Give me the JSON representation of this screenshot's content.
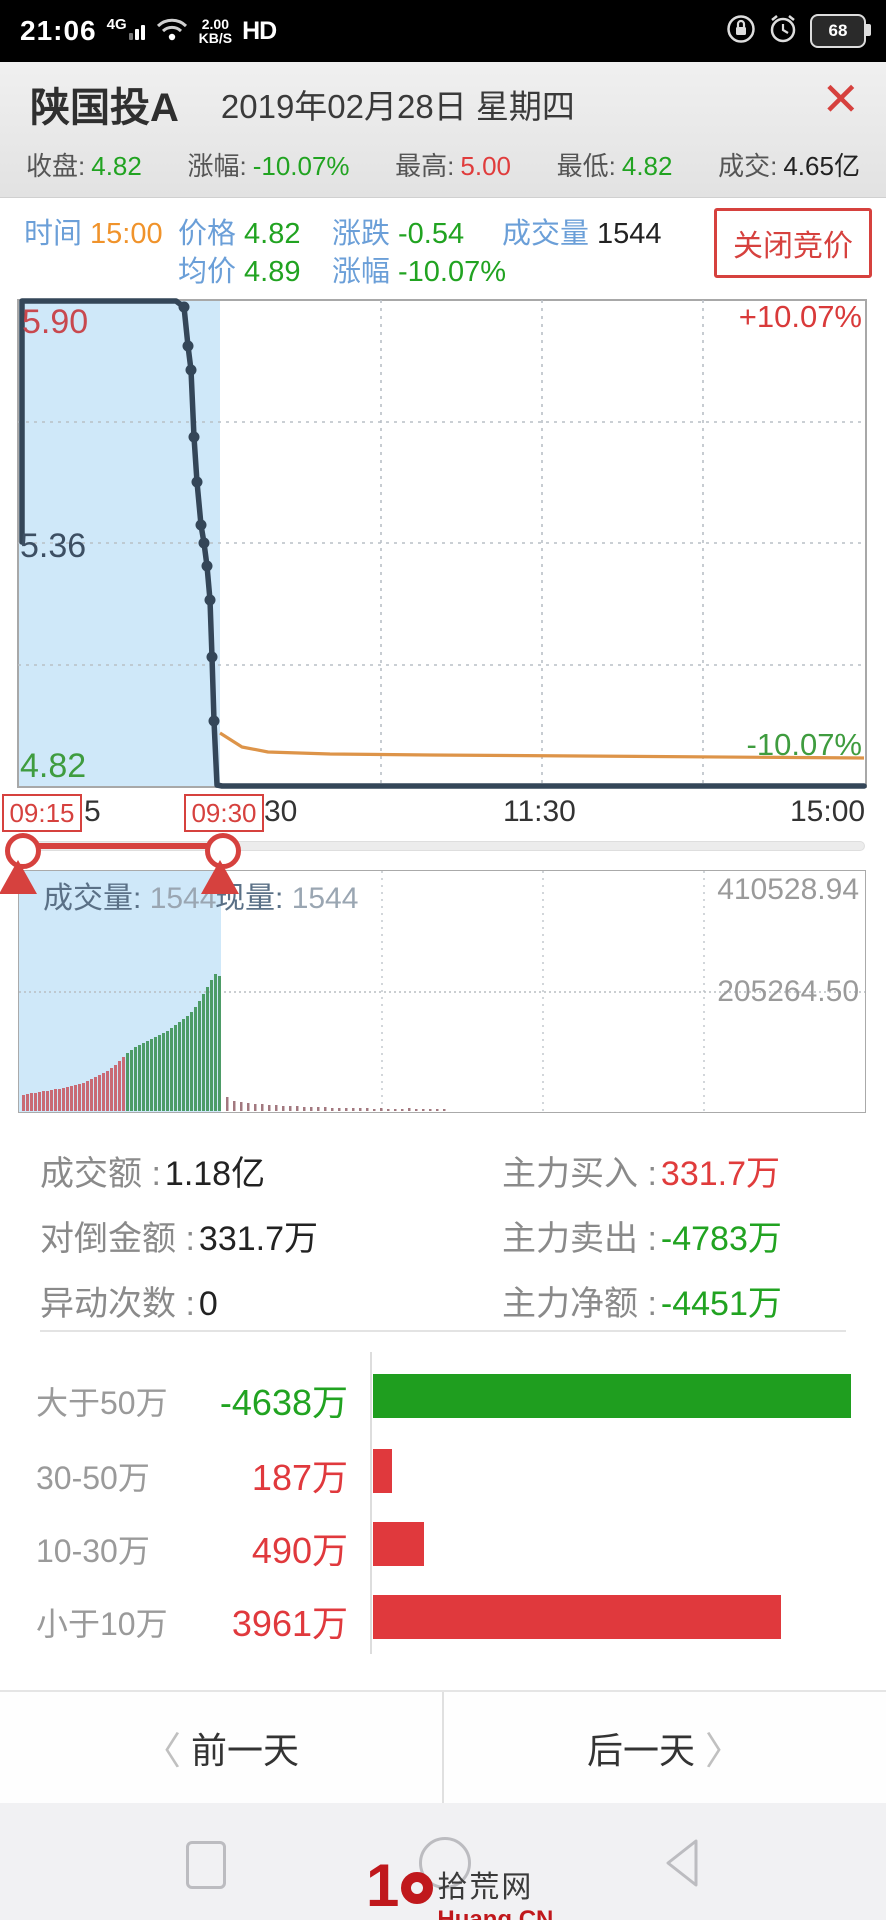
{
  "status_bar": {
    "time": "21:06",
    "network": "4G",
    "speed_top": "2.00",
    "speed_bottom": "KB/S",
    "hd": "HD",
    "battery_percent": "68"
  },
  "header": {
    "stock_name": "陕国投A",
    "date": "2019年02月28日 星期四",
    "close_icon": "✕",
    "stats": [
      {
        "label": "收盘:",
        "value": "4.82"
      },
      {
        "label": "涨幅:",
        "value": "-10.07%"
      },
      {
        "label": "最高:",
        "value": "5.00"
      },
      {
        "label": "最低:",
        "value": "4.82"
      },
      {
        "label": "成交:",
        "value": "4.65亿"
      }
    ]
  },
  "quote_panel": {
    "time_label": "时间",
    "time_value": "15:00",
    "price_label": "价格",
    "price_value": "4.82",
    "change_label": "涨跌",
    "change_value": "-0.54",
    "volume_label": "成交量",
    "volume_value": "1544",
    "avg_label": "均价",
    "avg_value": "4.89",
    "pct_label": "涨幅",
    "pct_value": "-10.07%",
    "auction_button": "关闭竞价"
  },
  "timeshare_chart": {
    "type": "line",
    "high_label": "5.90",
    "mid_label": "5.36",
    "low_label": "4.82",
    "pct_up_label": "+10.07%",
    "pct_down_label": "-10.07%",
    "x_axis": {
      "tick_after_start": "5",
      "tick_after_range_end": "30",
      "mid": "11:30",
      "end": "15:00"
    },
    "price_range": [
      4.82,
      5.9
    ],
    "prev_close": 5.36,
    "description": "开盘竞价从涨停5.90直线砸至跌停4.82，全天封死跌停",
    "price_points": "22,259 22,18 176,18 184,24 188,63 191,87 194,154 197,199 201,242 204,260 207,283 210,317 212,374 214,438 217,502 222,503 864,503",
    "price_dots": [
      [
        184,
        24
      ],
      [
        188,
        63
      ],
      [
        191,
        87
      ],
      [
        194,
        154
      ],
      [
        197,
        199
      ],
      [
        201,
        242
      ],
      [
        204,
        260
      ],
      [
        207,
        283
      ],
      [
        210,
        317
      ],
      [
        212,
        374
      ],
      [
        214,
        438
      ]
    ],
    "avg_points": "220,450 242,464 268,469 330,471 430,472 580,473 864,475"
  },
  "range_slider": {
    "start_label": "09:15",
    "end_label": "09:30"
  },
  "volume_panel": {
    "left_label": "成交量:",
    "left_value": "1544",
    "mid_label": "现量:",
    "mid_value": "1544",
    "right_top_value": "410528.94",
    "right_mid_value": "205264.50",
    "auction_bar_heights": [
      16,
      17,
      18,
      18,
      19,
      20,
      20,
      21,
      22,
      22,
      23,
      24,
      25,
      26,
      27,
      28,
      30,
      32,
      34,
      36,
      38,
      40,
      43,
      46,
      50,
      54,
      58,
      61,
      64,
      66,
      68,
      70,
      72,
      74,
      76,
      78,
      80,
      83,
      86,
      89,
      92,
      95,
      99,
      104,
      110,
      117,
      124,
      131,
      137,
      135
    ],
    "auction_red_count": 26,
    "post_bar_heights": [
      14,
      10,
      9,
      8,
      7,
      7,
      6,
      6,
      5,
      5,
      5,
      4,
      4,
      4,
      4,
      3,
      3,
      3,
      3,
      3,
      3,
      2,
      3,
      2,
      2,
      2,
      3,
      2,
      2,
      2,
      2,
      2
    ]
  },
  "summary": {
    "items": [
      {
        "label": "成交额 :",
        "value": "1.18亿",
        "cls": "c-dark"
      },
      {
        "label": "主力买入 :",
        "value": "331.7万",
        "cls": "c-red"
      },
      {
        "label": "对倒金额 :",
        "value": "331.7万",
        "cls": "c-dark"
      },
      {
        "label": "主力卖出 :",
        "value": "-4783万",
        "cls": "c-green"
      },
      {
        "label": "异动次数 :",
        "value": "0",
        "cls": "c-dark"
      },
      {
        "label": "主力净额 :",
        "value": "-4451万",
        "cls": "c-green"
      }
    ]
  },
  "flow_chart": {
    "type": "bar",
    "categories": [
      "大于50万",
      "30-50万",
      "10-30万",
      "小于10万"
    ],
    "values": [
      -4638,
      187,
      490,
      3961
    ],
    "value_labels": [
      "-4638万",
      "187万",
      "490万",
      "3961万"
    ],
    "colors": [
      "green",
      "red",
      "red",
      "red"
    ],
    "max_abs_value": 4638,
    "rows": [
      {
        "label": "大于50万",
        "value_label": "-4638万",
        "value": 4638,
        "color": "green"
      },
      {
        "label": "30-50万",
        "value_label": "187万",
        "value": 187,
        "color": "red"
      },
      {
        "label": "10-30万",
        "value_label": "490万",
        "value": 490,
        "color": "red"
      },
      {
        "label": "小于10万",
        "value_label": "3961万",
        "value": 3961,
        "color": "red"
      }
    ]
  },
  "day_nav": {
    "prev_chevron": "〈",
    "prev_label": "前一天",
    "next_label": "后一天",
    "next_chevron": "〉"
  },
  "watermark": {
    "big_digit": "1",
    "site_name": "拾荒网",
    "site_domain": "Huang.CN"
  },
  "colors": {
    "up_red": "#e03c3c",
    "down_green": "#21a321",
    "accent_red": "#d6413e",
    "price_line": "#344658",
    "avg_line": "#dd9449",
    "selection_blue": "#cfe8f9",
    "label_blue": "#6b9fd8",
    "time_orange": "#f0932b"
  }
}
